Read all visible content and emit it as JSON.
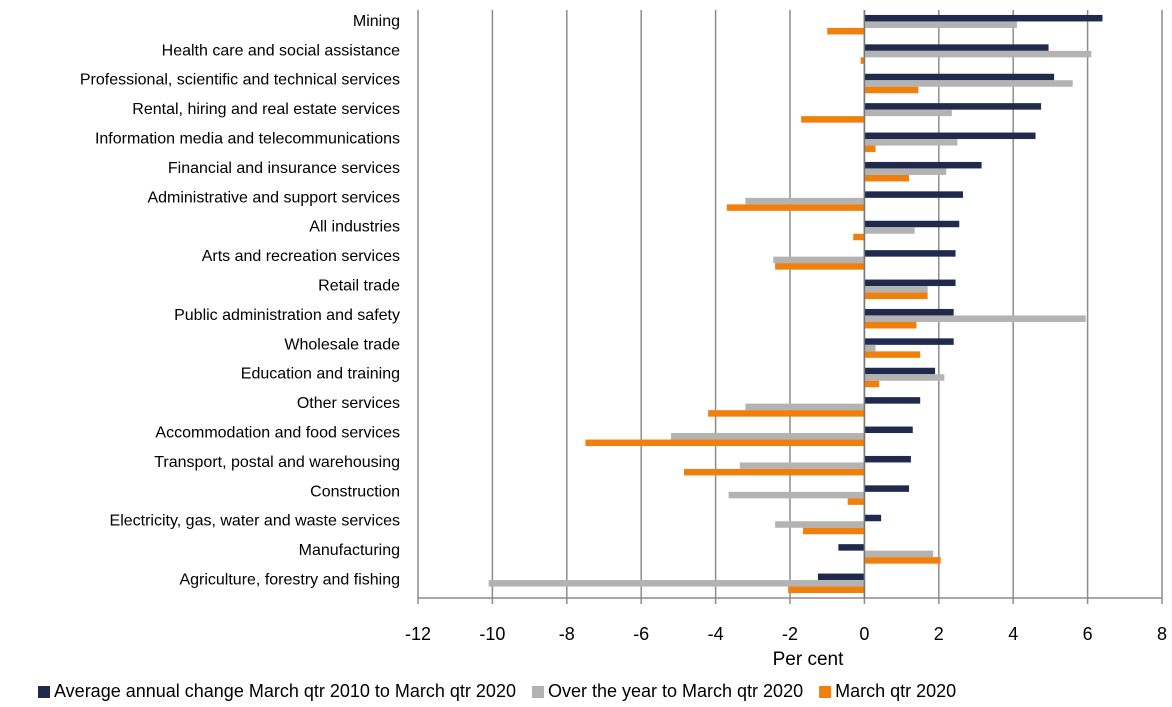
{
  "chart_data": {
    "type": "bar",
    "orientation": "horizontal",
    "categories": [
      "Mining",
      "Health care and social assistance",
      "Professional, scientific and technical services",
      "Rental, hiring and real estate services",
      "Information media and telecommunications",
      "Financial and insurance services",
      "Administrative and support services",
      "All industries",
      "Arts and recreation services",
      "Retail trade",
      "Public administration and safety",
      "Wholesale trade",
      "Education and training",
      "Other services",
      "Accommodation and food services",
      "Transport, postal and warehousing",
      "Construction",
      "Electricity, gas, water and waste services",
      "Manufacturing",
      "Agriculture, forestry and fishing"
    ],
    "series": [
      {
        "name": "Average annual change March qtr 2010 to March qtr 2020",
        "color": "#1f2a4d",
        "values": [
          6.4,
          4.95,
          5.1,
          4.75,
          4.6,
          3.15,
          2.65,
          2.55,
          2.45,
          2.45,
          2.4,
          2.4,
          1.9,
          1.5,
          1.3,
          1.25,
          1.2,
          0.45,
          -0.7,
          -1.25
        ]
      },
      {
        "name": "Over the year to March qtr 2020",
        "color": "#b3b3b3",
        "values": [
          4.1,
          6.1,
          5.6,
          2.35,
          2.5,
          2.2,
          -3.2,
          1.35,
          -2.45,
          1.7,
          5.95,
          0.3,
          2.15,
          -3.2,
          -5.2,
          -3.35,
          -3.65,
          -2.4,
          1.85,
          -10.1
        ]
      },
      {
        "name": "March qtr 2020",
        "color": "#f07f0b",
        "values": [
          -1.0,
          -0.1,
          1.45,
          -1.7,
          0.3,
          1.2,
          -3.7,
          -0.3,
          -2.4,
          1.7,
          1.4,
          1.5,
          0.4,
          -4.2,
          -7.5,
          -4.85,
          -0.45,
          -1.65,
          2.05,
          -2.05
        ]
      }
    ],
    "xlim": [
      -12,
      8
    ],
    "xticks": [
      -12,
      -10,
      -8,
      -6,
      -4,
      -2,
      0,
      2,
      4,
      6,
      8
    ],
    "xlabel": "Per cent",
    "grid": true,
    "legend": "bottom"
  }
}
